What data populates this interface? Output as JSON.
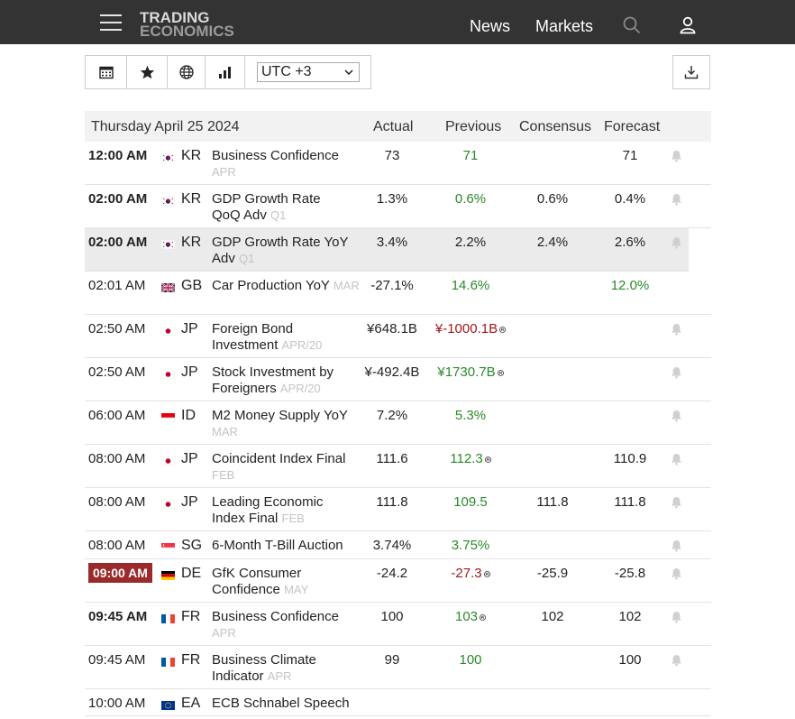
{
  "header": {
    "logo_line1": "TRADING",
    "logo_line2": "ECONOMICS",
    "nav_news": "News",
    "nav_markets": "Markets"
  },
  "toolbar": {
    "timezone": "UTC +3"
  },
  "table": {
    "date_label": "Thursday April 25 2024",
    "col_actual": "Actual",
    "col_previous": "Previous",
    "col_consensus": "Consensus",
    "col_forecast": "Forecast",
    "rows": [
      {
        "time": "12:00 AM",
        "time_style": "bold",
        "flag": "KR",
        "country": "KR",
        "event": "Business Confidence",
        "period": "APR",
        "actual": "73",
        "previous": "71",
        "prev_color": "green",
        "prev_rev": false,
        "consensus": "",
        "forecast": "71",
        "fc_color": "",
        "bell": true,
        "highlight": false
      },
      {
        "time": "02:00 AM",
        "time_style": "bold",
        "flag": "KR",
        "country": "KR",
        "event": "GDP Growth Rate QoQ Adv",
        "period": "Q1",
        "actual": "1.3%",
        "previous": "0.6%",
        "prev_color": "green",
        "prev_rev": false,
        "consensus": "0.6%",
        "forecast": "0.4%",
        "fc_color": "",
        "bell": true,
        "highlight": false
      },
      {
        "time": "02:00 AM",
        "time_style": "bold",
        "flag": "KR",
        "country": "KR",
        "event": "GDP Growth Rate YoY Adv",
        "period": "Q1",
        "actual": "3.4%",
        "previous": "2.2%",
        "prev_color": "",
        "prev_rev": false,
        "consensus": "2.4%",
        "forecast": "2.6%",
        "fc_color": "",
        "bell": true,
        "highlight": true
      },
      {
        "time": "02:01 AM",
        "time_style": "",
        "flag": "GB",
        "country": "GB",
        "event": "Car Production YoY",
        "period": "MAR",
        "actual": "-27.1%",
        "previous": "14.6%",
        "prev_color": "green",
        "prev_rev": false,
        "consensus": "",
        "forecast": "12.0%",
        "fc_color": "green",
        "bell": false,
        "highlight": false
      },
      {
        "time": "02:50 AM",
        "time_style": "",
        "flag": "JP",
        "country": "JP",
        "event": "Foreign Bond Investment",
        "period": "APR/20",
        "actual": "¥648.1B",
        "previous": "¥-1000.1B",
        "prev_color": "red",
        "prev_rev": true,
        "consensus": "",
        "forecast": "",
        "fc_color": "",
        "bell": true,
        "highlight": false
      },
      {
        "time": "02:50 AM",
        "time_style": "",
        "flag": "JP",
        "country": "JP",
        "event": "Stock Investment by Foreigners",
        "period": "APR/20",
        "actual": "¥-492.4B",
        "previous": "¥1730.7B",
        "prev_color": "green",
        "prev_rev": true,
        "consensus": "",
        "forecast": "",
        "fc_color": "",
        "bell": true,
        "highlight": false
      },
      {
        "time": "06:00 AM",
        "time_style": "",
        "flag": "ID",
        "country": "ID",
        "event": "M2 Money Supply YoY",
        "period": "MAR",
        "actual": "7.2%",
        "previous": "5.3%",
        "prev_color": "green",
        "prev_rev": false,
        "consensus": "",
        "forecast": "",
        "fc_color": "",
        "bell": true,
        "highlight": false
      },
      {
        "time": "08:00 AM",
        "time_style": "",
        "flag": "JP",
        "country": "JP",
        "event": "Coincident Index Final",
        "period": "FEB",
        "actual": "111.6",
        "previous": "112.3",
        "prev_color": "green",
        "prev_rev": true,
        "consensus": "",
        "forecast": "110.9",
        "fc_color": "",
        "bell": true,
        "highlight": false
      },
      {
        "time": "08:00 AM",
        "time_style": "",
        "flag": "JP",
        "country": "JP",
        "event": "Leading Economic Index Final",
        "period": "FEB",
        "actual": "111.8",
        "previous": "109.5",
        "prev_color": "green",
        "prev_rev": false,
        "consensus": "111.8",
        "forecast": "111.8",
        "fc_color": "",
        "bell": true,
        "highlight": false
      },
      {
        "time": "08:00 AM",
        "time_style": "",
        "flag": "SG",
        "country": "SG",
        "event": "6-Month T-Bill Auction",
        "period": "",
        "actual": "3.74%",
        "previous": "3.75%",
        "prev_color": "green",
        "prev_rev": false,
        "consensus": "",
        "forecast": "",
        "fc_color": "",
        "bell": true,
        "highlight": false
      },
      {
        "time": "09:00 AM",
        "time_style": "badge",
        "flag": "DE",
        "country": "DE",
        "event": "GfK Consumer Confidence",
        "period": "MAY",
        "actual": "-24.2",
        "previous": "-27.3",
        "prev_color": "red",
        "prev_rev": true,
        "consensus": "-25.9",
        "forecast": "-25.8",
        "fc_color": "",
        "bell": true,
        "highlight": false
      },
      {
        "time": "09:45 AM",
        "time_style": "bold",
        "flag": "FR",
        "country": "FR",
        "event": "Business Confidence",
        "period": "APR",
        "actual": "100",
        "previous": "103",
        "prev_color": "green",
        "prev_rev": true,
        "consensus": "102",
        "forecast": "102",
        "fc_color": "",
        "bell": true,
        "highlight": false
      },
      {
        "time": "09:45 AM",
        "time_style": "",
        "flag": "FR",
        "country": "FR",
        "event": "Business Climate Indicator",
        "period": "APR",
        "actual": "99",
        "previous": "100",
        "prev_color": "green",
        "prev_rev": false,
        "consensus": "",
        "forecast": "100",
        "fc_color": "",
        "bell": true,
        "highlight": false
      },
      {
        "time": "10:00 AM",
        "time_style": "",
        "flag": "EA",
        "country": "EA",
        "event": "ECB Schnabel Speech",
        "period": "",
        "actual": "",
        "previous": "",
        "prev_color": "",
        "prev_rev": false,
        "consensus": "",
        "forecast": "",
        "fc_color": "",
        "bell": false,
        "highlight": false
      }
    ]
  }
}
